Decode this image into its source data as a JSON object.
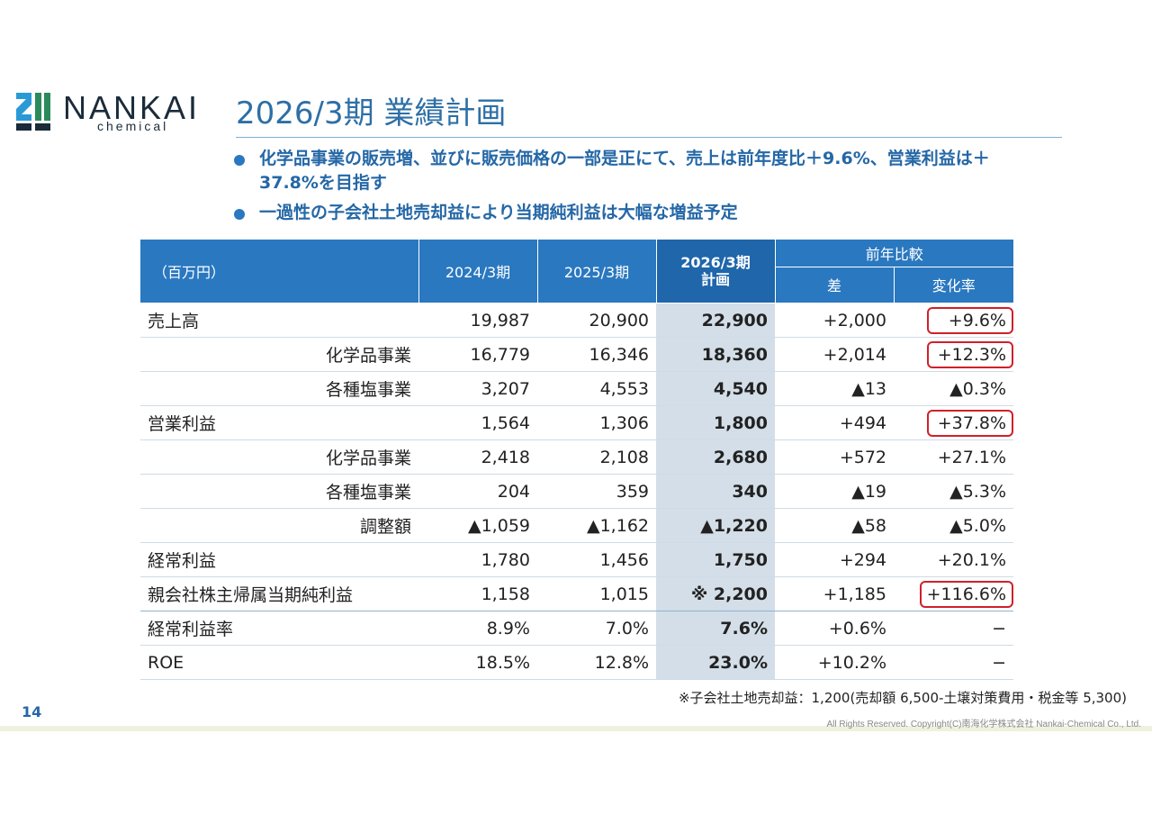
{
  "logo": {
    "name": "NANKAI",
    "sub": "chemical",
    "colors": [
      "#2a9ad6",
      "#2a8a5a",
      "#1a2b3a"
    ]
  },
  "title": "2026/3期 業績計画",
  "bullets": [
    "化学品事業の販売増、並びに販売価格の一部是正にて、売上は前年度比＋9.6%、営業利益は＋37.8%を目指す",
    "一過性の子会社土地売却益により当期純利益は大幅な増益予定"
  ],
  "table": {
    "unit_label": "（百万円）",
    "col_2024": "2024/3期",
    "col_2025": "2025/3期",
    "col_plan_line1": "2026/3期",
    "col_plan_line2": "計画",
    "col_compare": "前年比較",
    "col_diff": "差",
    "col_rate": "変化率",
    "rows": [
      {
        "label": "売上高",
        "indent": false,
        "v2024": "19,987",
        "v2025": "20,900",
        "plan": "22,900",
        "diff": "+2,000",
        "rate": "+9.6%",
        "highlight": true
      },
      {
        "label": "化学品事業",
        "indent": true,
        "v2024": "16,779",
        "v2025": "16,346",
        "plan": "18,360",
        "diff": "+2,014",
        "rate": "+12.3%",
        "highlight": true
      },
      {
        "label": "各種塩事業",
        "indent": true,
        "v2024": "3,207",
        "v2025": "4,553",
        "plan": "4,540",
        "diff": "▲13",
        "rate": "▲0.3%",
        "highlight": false
      },
      {
        "label": "営業利益",
        "indent": false,
        "v2024": "1,564",
        "v2025": "1,306",
        "plan": "1,800",
        "diff": "+494",
        "rate": "+37.8%",
        "highlight": true
      },
      {
        "label": "化学品事業",
        "indent": true,
        "v2024": "2,418",
        "v2025": "2,108",
        "plan": "2,680",
        "diff": "+572",
        "rate": "+27.1%",
        "highlight": false
      },
      {
        "label": "各種塩事業",
        "indent": true,
        "v2024": "204",
        "v2025": "359",
        "plan": "340",
        "diff": "▲19",
        "rate": "▲5.3%",
        "highlight": false
      },
      {
        "label": "調整額",
        "indent": true,
        "v2024": "▲1,059",
        "v2025": "▲1,162",
        "plan": "▲1,220",
        "diff": "▲58",
        "rate": "▲5.0%",
        "highlight": false
      },
      {
        "label": "経常利益",
        "indent": false,
        "v2024": "1,780",
        "v2025": "1,456",
        "plan": "1,750",
        "diff": "+294",
        "rate": "+20.1%",
        "highlight": false
      },
      {
        "label": "親会社株主帰属当期純利益",
        "indent": false,
        "v2024": "1,158",
        "v2025": "1,015",
        "plan": "※ 2,200",
        "diff": "+1,185",
        "rate": "+116.6%",
        "highlight": true
      },
      {
        "label": "経常利益率",
        "indent": false,
        "v2024": "8.9%",
        "v2025": "7.0%",
        "plan": "7.6%",
        "diff": "+0.6%",
        "rate": "−",
        "highlight": false
      },
      {
        "label": "ROE",
        "indent": false,
        "v2024": "18.5%",
        "v2025": "12.8%",
        "plan": "23.0%",
        "diff": "+10.2%",
        "rate": "−",
        "highlight": false
      }
    ]
  },
  "footnote": "※子会社土地売却益：1,200(売却額 6,500-土壌対策費用・税金等 5,300)",
  "page_number": "14",
  "copyright": "All Rights Reserved. Copyright(C)南海化学株式会社 Nankai-Chemical Co., Ltd."
}
